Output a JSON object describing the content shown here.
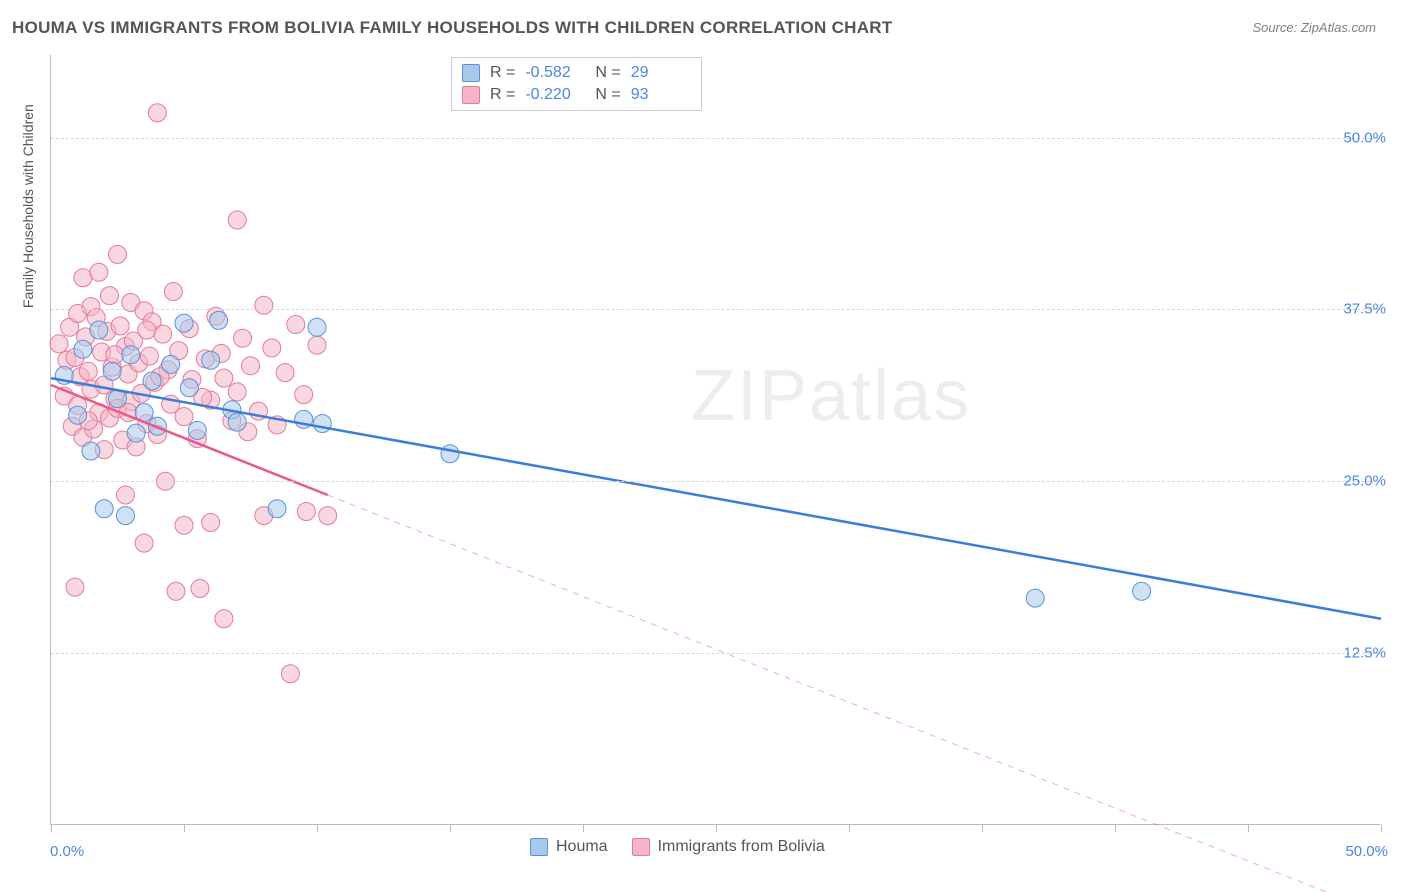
{
  "title": "HOUMA VS IMMIGRANTS FROM BOLIVIA FAMILY HOUSEHOLDS WITH CHILDREN CORRELATION CHART",
  "source": "Source: ZipAtlas.com",
  "y_axis_title": "Family Households with Children",
  "watermark_bold": "ZIP",
  "watermark_thin": "atlas",
  "chart": {
    "type": "scatter",
    "xlim": [
      0,
      50
    ],
    "ylim": [
      0,
      56
    ],
    "x_ticks": [
      0,
      5,
      10,
      15,
      20,
      25,
      30,
      35,
      40,
      45,
      50
    ],
    "x_tick_labels": {
      "0": "0.0%",
      "50": "50.0%"
    },
    "y_grid": [
      12.5,
      25.0,
      37.5,
      50.0
    ],
    "y_tick_labels": [
      "12.5%",
      "25.0%",
      "37.5%",
      "50.0%"
    ],
    "background_color": "#ffffff",
    "grid_color": "#d8d8d8",
    "marker_radius": 9
  },
  "series_a": {
    "name": "Houma",
    "R": "-0.582",
    "N": "29",
    "fill": "#a8c8ec",
    "stroke": "#5a94d6",
    "line_color": "#3b7dd8",
    "trend": {
      "x1": 0,
      "y1": 32.5,
      "x2": 50,
      "y2": 15.0,
      "extend_dashed": false
    },
    "points": [
      [
        0.5,
        32.7
      ],
      [
        1.0,
        29.8
      ],
      [
        1.2,
        34.6
      ],
      [
        1.5,
        27.2
      ],
      [
        1.8,
        36.0
      ],
      [
        2.0,
        23.0
      ],
      [
        2.3,
        33.0
      ],
      [
        2.5,
        31.0
      ],
      [
        2.8,
        22.5
      ],
      [
        3.0,
        34.2
      ],
      [
        3.2,
        28.5
      ],
      [
        3.5,
        30.0
      ],
      [
        3.8,
        32.3
      ],
      [
        4.0,
        29.0
      ],
      [
        4.5,
        33.5
      ],
      [
        5.0,
        36.5
      ],
      [
        5.2,
        31.8
      ],
      [
        5.5,
        28.7
      ],
      [
        6.0,
        33.8
      ],
      [
        6.3,
        36.7
      ],
      [
        6.8,
        30.2
      ],
      [
        7.0,
        29.3
      ],
      [
        8.5,
        23.0
      ],
      [
        9.5,
        29.5
      ],
      [
        10.0,
        36.2
      ],
      [
        10.2,
        29.2
      ],
      [
        15.0,
        27.0
      ],
      [
        37.0,
        16.5
      ],
      [
        41.0,
        17.0
      ]
    ]
  },
  "series_b": {
    "name": "Immigants from Bolivia",
    "legend_bottom_label": "Immigrants from Bolivia",
    "R": "-0.220",
    "N": "93",
    "fill": "#f4b6c6",
    "stroke": "#e77a9a",
    "line_color": "#e85a88",
    "trend": {
      "x1": 0,
      "y1": 32.0,
      "x2": 10.4,
      "y2": 24.0,
      "extend_dashed": true,
      "x2_ext": 50
    },
    "points": [
      [
        0.3,
        35.0
      ],
      [
        0.5,
        31.2
      ],
      [
        0.6,
        33.8
      ],
      [
        0.7,
        36.2
      ],
      [
        0.8,
        29.0
      ],
      [
        0.9,
        34.0
      ],
      [
        1.0,
        37.2
      ],
      [
        1.0,
        30.5
      ],
      [
        1.1,
        32.6
      ],
      [
        1.2,
        39.8
      ],
      [
        1.2,
        28.2
      ],
      [
        1.3,
        35.5
      ],
      [
        1.4,
        33.0
      ],
      [
        1.5,
        31.7
      ],
      [
        1.5,
        37.7
      ],
      [
        1.6,
        28.8
      ],
      [
        1.7,
        36.9
      ],
      [
        1.8,
        40.2
      ],
      [
        1.8,
        30.0
      ],
      [
        1.9,
        34.4
      ],
      [
        2.0,
        32.0
      ],
      [
        2.0,
        27.3
      ],
      [
        2.1,
        35.9
      ],
      [
        2.2,
        38.5
      ],
      [
        2.2,
        29.6
      ],
      [
        2.3,
        33.3
      ],
      [
        2.4,
        31.0
      ],
      [
        2.5,
        41.5
      ],
      [
        2.5,
        30.3
      ],
      [
        2.6,
        36.3
      ],
      [
        2.7,
        28.0
      ],
      [
        2.8,
        34.8
      ],
      [
        2.8,
        24.0
      ],
      [
        2.9,
        32.8
      ],
      [
        3.0,
        38.0
      ],
      [
        3.0,
        30.8
      ],
      [
        3.1,
        35.2
      ],
      [
        3.2,
        27.5
      ],
      [
        3.3,
        33.6
      ],
      [
        3.4,
        31.4
      ],
      [
        3.5,
        37.4
      ],
      [
        3.5,
        20.5
      ],
      [
        3.6,
        29.2
      ],
      [
        3.7,
        34.1
      ],
      [
        3.8,
        36.6
      ],
      [
        3.9,
        32.2
      ],
      [
        4.0,
        28.4
      ],
      [
        4.0,
        51.8
      ],
      [
        4.2,
        35.7
      ],
      [
        4.3,
        25.0
      ],
      [
        4.4,
        33.1
      ],
      [
        4.5,
        30.6
      ],
      [
        4.6,
        38.8
      ],
      [
        4.7,
        17.0
      ],
      [
        4.8,
        34.5
      ],
      [
        5.0,
        29.7
      ],
      [
        5.0,
        21.8
      ],
      [
        5.2,
        36.1
      ],
      [
        5.3,
        32.4
      ],
      [
        5.5,
        28.1
      ],
      [
        5.6,
        17.2
      ],
      [
        5.8,
        33.9
      ],
      [
        6.0,
        30.9
      ],
      [
        6.0,
        22.0
      ],
      [
        6.2,
        37.0
      ],
      [
        6.4,
        34.3
      ],
      [
        6.5,
        15.0
      ],
      [
        6.8,
        29.4
      ],
      [
        7.0,
        44.0
      ],
      [
        7.0,
        31.5
      ],
      [
        7.2,
        35.4
      ],
      [
        7.4,
        28.6
      ],
      [
        7.5,
        33.4
      ],
      [
        7.8,
        30.1
      ],
      [
        8.0,
        37.8
      ],
      [
        8.0,
        22.5
      ],
      [
        8.3,
        34.7
      ],
      [
        8.5,
        29.1
      ],
      [
        8.8,
        32.9
      ],
      [
        9.0,
        11.0
      ],
      [
        9.2,
        36.4
      ],
      [
        9.5,
        31.3
      ],
      [
        9.6,
        22.8
      ],
      [
        10.0,
        34.9
      ],
      [
        10.4,
        22.5
      ],
      [
        6.5,
        32.5
      ],
      [
        5.7,
        31.1
      ],
      [
        4.1,
        32.6
      ],
      [
        3.6,
        36.0
      ],
      [
        2.9,
        30.0
      ],
      [
        2.4,
        34.2
      ],
      [
        1.4,
        29.4
      ],
      [
        0.9,
        17.3
      ]
    ]
  },
  "legend_top": {
    "R_label": "R =",
    "N_label": "N ="
  }
}
